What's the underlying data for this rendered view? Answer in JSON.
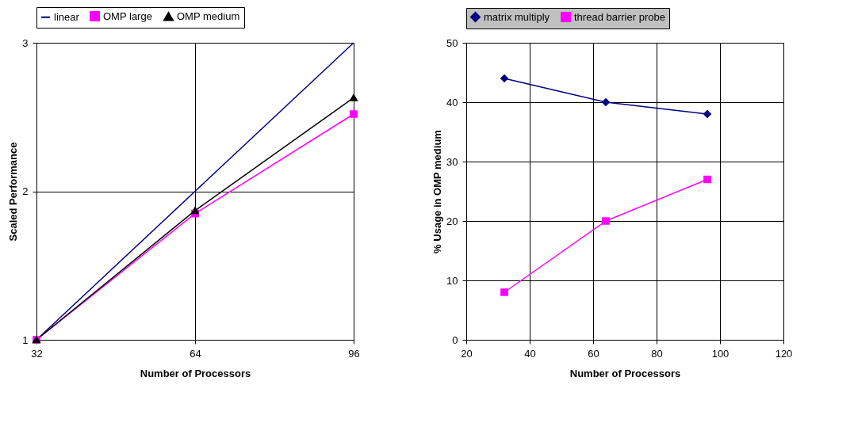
{
  "chart_data": [
    {
      "type": "line",
      "xlabel": "Number of Processors",
      "ylabel": "Scaled Performance",
      "x": [
        32,
        64,
        96
      ],
      "xlim": [
        32,
        96
      ],
      "xticks": [
        32,
        64,
        96
      ],
      "ylim": [
        1,
        3
      ],
      "yticks": [
        1,
        2,
        3
      ],
      "grid": true,
      "legend": "top",
      "series": [
        {
          "name": "linear",
          "color": "#000080",
          "marker": "none",
          "values": [
            1,
            2,
            3
          ]
        },
        {
          "name": "OMP large",
          "color": "#ff00ff",
          "marker": "square",
          "values": [
            1,
            1.85,
            2.52
          ]
        },
        {
          "name": "OMP medium",
          "color": "#000000",
          "marker": "triangle",
          "values": [
            1,
            1.87,
            2.63
          ]
        }
      ]
    },
    {
      "type": "line",
      "xlabel": "Number of Processors",
      "ylabel": "% Usage in OMP medium",
      "x": [
        32,
        64,
        96
      ],
      "xlim": [
        20,
        120
      ],
      "xticks": [
        20,
        40,
        60,
        80,
        100,
        120
      ],
      "ylim": [
        0,
        50
      ],
      "yticks": [
        0,
        10,
        20,
        30,
        40,
        50
      ],
      "grid": true,
      "legend": "top",
      "series": [
        {
          "name": "matrix multiply",
          "color": "#000080",
          "marker": "diamond",
          "values": [
            44,
            40,
            38
          ]
        },
        {
          "name": "thread barrier probe",
          "color": "#ff00ff",
          "marker": "square",
          "values": [
            8,
            20,
            27
          ]
        }
      ]
    }
  ]
}
